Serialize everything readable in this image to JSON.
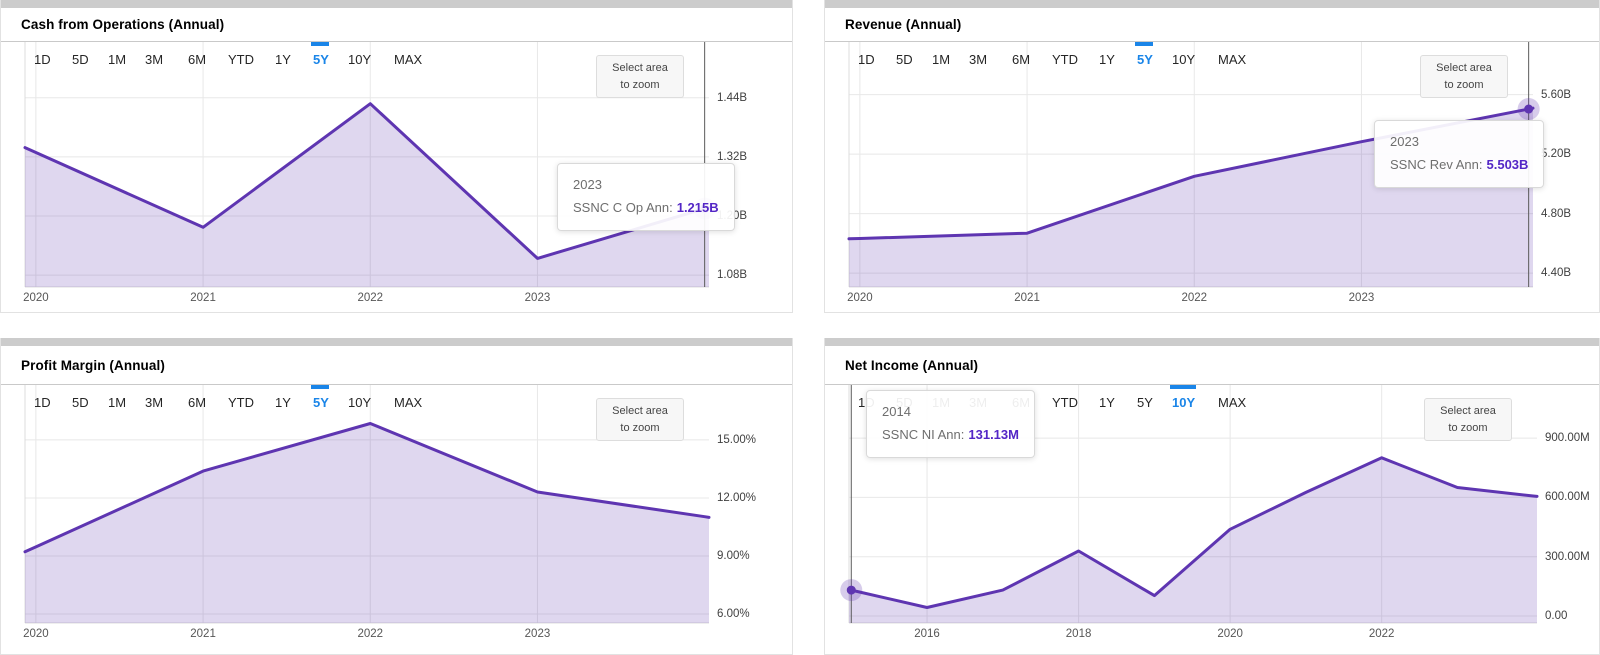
{
  "colors": {
    "line": "#5E35B1",
    "area_fill": "rgba(94,53,177,0.20)",
    "marker_halo": "rgba(94,53,177,0.25)",
    "tooltip_value": "#5326C6",
    "selected_range": "#1A85E8",
    "crosshair": "#5a5a5a",
    "gridline": "#e8e8e8",
    "axis_line": "#dcdcdc"
  },
  "range_buttons": [
    "1D",
    "5D",
    "1M",
    "3M",
    "6M",
    "YTD",
    "1Y",
    "5Y",
    "10Y",
    "MAX"
  ],
  "zoom_button": {
    "line1": "Select area",
    "line2": "to zoom"
  },
  "chart_data": [
    {
      "type": "area",
      "title": "Cash from Operations (Annual)",
      "series_name": "SSNC C Op Ann",
      "selected_range": "5Y",
      "fiscal_years": [
        2019,
        2020,
        2021,
        2022,
        2023
      ],
      "values": [
        1.329,
        1.177,
        1.428,
        1.114,
        1.215
      ],
      "unit": "B",
      "grid": true,
      "legend_position": "none",
      "ylim": [
        1.0559,
        1.5532
      ],
      "xlim": [
        2019.935,
        2024.026
      ],
      "y_ticks": [
        {
          "value": 1.08,
          "label": "1.08B"
        },
        {
          "value": 1.2,
          "label": "1.20B"
        },
        {
          "value": 1.32,
          "label": "1.32B"
        },
        {
          "value": 1.44,
          "label": "1.44B"
        }
      ],
      "x_ticks": [
        {
          "year": 2020,
          "label": "2020"
        },
        {
          "year": 2021,
          "label": "2021"
        },
        {
          "year": 2022,
          "label": "2022"
        },
        {
          "year": 2023,
          "label": "2023"
        }
      ],
      "hover": {
        "fiscal_year": 2023,
        "tooltip_title": "2023",
        "tooltip_label": "SSNC C Op Ann:",
        "tooltip_value": "1.215B",
        "show_dot": true
      }
    },
    {
      "type": "area",
      "title": "Revenue (Annual)",
      "series_name": "SSNC Rev Ann",
      "selected_range": "5Y",
      "fiscal_years": [
        2019,
        2020,
        2021,
        2022,
        2023
      ],
      "values": [
        4.633,
        4.668,
        5.051,
        5.283,
        5.503
      ],
      "unit": "B",
      "grid": true,
      "legend_position": "none",
      "ylim": [
        4.3067,
        5.9534
      ],
      "xlim": [
        2019.935,
        2024.026
      ],
      "y_ticks": [
        {
          "value": 4.4,
          "label": "4.40B"
        },
        {
          "value": 4.8,
          "label": "4.80B"
        },
        {
          "value": 5.2,
          "label": "5.20B"
        },
        {
          "value": 5.6,
          "label": "5.60B"
        }
      ],
      "x_ticks": [
        {
          "year": 2020,
          "label": "2020"
        },
        {
          "year": 2021,
          "label": "2021"
        },
        {
          "year": 2022,
          "label": "2022"
        },
        {
          "year": 2023,
          "label": "2023"
        }
      ],
      "hover": {
        "fiscal_year": 2023,
        "tooltip_title": "2023",
        "tooltip_label": "SSNC Rev Ann:",
        "tooltip_value": "5.503B",
        "show_dot": true
      }
    },
    {
      "type": "area",
      "title": "Profit Margin (Annual)",
      "series_name": "Profit Margin",
      "selected_range": "5Y",
      "fiscal_years": [
        2019,
        2020,
        2021,
        2022,
        2023
      ],
      "values": [
        9.47,
        13.39,
        15.85,
        12.31,
        11.03
      ],
      "unit": "%",
      "grid": true,
      "legend_position": "none",
      "ylim": [
        5.534,
        17.84
      ],
      "xlim": [
        2019.935,
        2024.026
      ],
      "y_ticks": [
        {
          "value": 6,
          "label": "6.00%"
        },
        {
          "value": 9,
          "label": "9.00%"
        },
        {
          "value": 12,
          "label": "12.00%"
        },
        {
          "value": 15,
          "label": "15.00%"
        }
      ],
      "x_ticks": [
        {
          "year": 2020,
          "label": "2020"
        },
        {
          "year": 2021,
          "label": "2021"
        },
        {
          "year": 2022,
          "label": "2022"
        },
        {
          "year": 2023,
          "label": "2023"
        }
      ],
      "hover": null
    },
    {
      "type": "area",
      "title": "Net Income (Annual)",
      "series_name": "SSNC NI Ann",
      "selected_range": "10Y",
      "fiscal_years": [
        2014,
        2015,
        2016,
        2017,
        2018,
        2019,
        2020,
        2021,
        2022,
        2023
      ],
      "values": [
        131.13,
        42.9,
        131.0,
        328.9,
        103.2,
        438.5,
        625.2,
        800.4,
        650.2,
        607.1
      ],
      "unit": "M",
      "grid": true,
      "legend_position": "none",
      "ylim": [
        -35.4,
        1168.6
      ],
      "xlim": [
        2014.97,
        2024.05
      ],
      "y_ticks": [
        {
          "value": 0,
          "label": "0.00"
        },
        {
          "value": 300,
          "label": "300.00M"
        },
        {
          "value": 600,
          "label": "600.00M"
        },
        {
          "value": 900,
          "label": "900.00M"
        }
      ],
      "x_ticks": [
        {
          "year": 2016,
          "label": "2016"
        },
        {
          "year": 2018,
          "label": "2018"
        },
        {
          "year": 2020,
          "label": "2020"
        },
        {
          "year": 2022,
          "label": "2022"
        }
      ],
      "hover": {
        "fiscal_year": 2014,
        "tooltip_title": "2014",
        "tooltip_label": "SSNC NI Ann:",
        "tooltip_value": "131.13M",
        "show_dot": true
      }
    }
  ]
}
